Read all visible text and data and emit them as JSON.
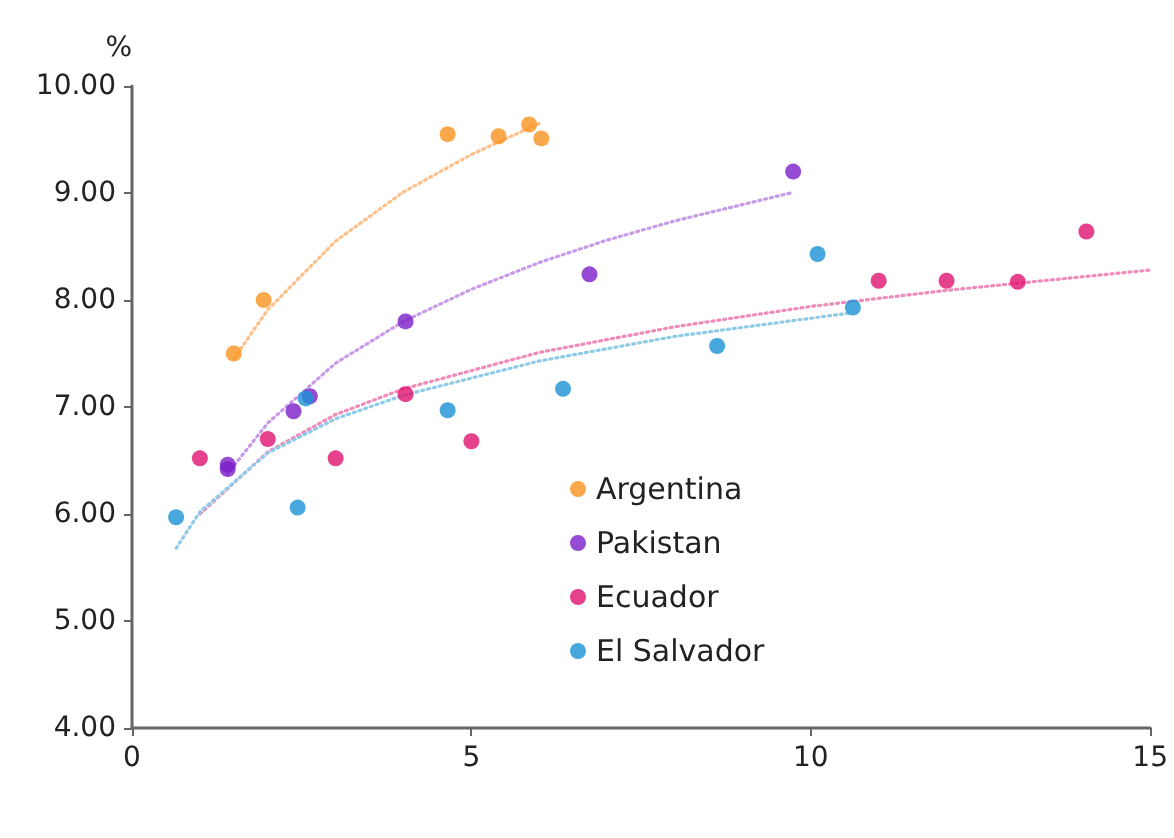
{
  "chart_data": {
    "type": "scatter",
    "ylabel": "%",
    "xlim": [
      0,
      15
    ],
    "xticks": [
      0,
      5,
      10,
      15
    ],
    "ylim": [
      4,
      10
    ],
    "yticks": [
      {
        "value": 4,
        "label": "4.00"
      },
      {
        "value": 5,
        "label": "5.00"
      },
      {
        "value": 6,
        "label": "6.00"
      },
      {
        "value": 7,
        "label": "7.00"
      },
      {
        "value": 8,
        "label": "8.00"
      },
      {
        "value": 9,
        "label": "9.00"
      },
      {
        "value": 10,
        "label": "10.00"
      }
    ],
    "grid": false,
    "legend": "bottom",
    "marker": "circle",
    "series": [
      {
        "name": "Argentina",
        "color": "#f7931e",
        "x": [
          1.5,
          1.94,
          4.65,
          5.4,
          5.85,
          6.03
        ],
        "values": [
          7.5,
          8.0,
          9.55,
          9.53,
          9.64,
          9.51
        ]
      },
      {
        "name": "Pakistan",
        "color": "#7b1fc8",
        "x": [
          1.41,
          1.41,
          2.38,
          2.62,
          4.03,
          6.74,
          9.74
        ],
        "values": [
          6.46,
          6.42,
          6.96,
          7.1,
          7.8,
          8.24,
          9.2
        ]
      },
      {
        "name": "Ecuador",
        "color": "#e0116f",
        "x": [
          1.0,
          2.0,
          3.0,
          4.03,
          5.0,
          11.0,
          12.0,
          13.05,
          14.06
        ],
        "values": [
          6.52,
          6.7,
          6.52,
          7.12,
          6.68,
          8.18,
          8.18,
          8.17,
          8.64
        ]
      },
      {
        "name": "El Salvador",
        "color": "#1a92d4",
        "x": [
          0.65,
          2.44,
          2.56,
          4.65,
          6.35,
          8.62,
          10.1,
          10.62
        ],
        "values": [
          5.97,
          6.06,
          7.08,
          6.97,
          7.17,
          7.57,
          8.43,
          7.93
        ]
      },
      {
        "type": "line",
        "marker": "none",
        "line_style": "dotted",
        "color": "#ffbf8a",
        "x": [
          1.5,
          2,
          3,
          4,
          5,
          6
        ],
        "values": [
          7.45,
          7.91,
          8.55,
          9.01,
          9.36,
          9.65
        ]
      },
      {
        "type": "line",
        "marker": "none",
        "line_style": "dotted",
        "color": "#c79bea",
        "x": [
          1.4,
          2,
          3,
          4,
          5,
          6,
          7,
          8,
          9.7
        ],
        "values": [
          6.37,
          6.85,
          7.41,
          7.8,
          8.1,
          8.35,
          8.56,
          8.74,
          9.0
        ]
      },
      {
        "type": "line",
        "marker": "none",
        "line_style": "dotted",
        "color": "#f08ab8",
        "x": [
          1,
          2,
          3,
          4,
          6,
          8,
          10,
          12,
          15
        ],
        "values": [
          6.0,
          6.58,
          6.93,
          7.17,
          7.51,
          7.75,
          7.94,
          8.09,
          8.28
        ]
      },
      {
        "type": "line",
        "marker": "none",
        "line_style": "dotted",
        "color": "#8fcbe8",
        "x": [
          0.65,
          1,
          2,
          3,
          4,
          6,
          8,
          10.6
        ],
        "values": [
          5.68,
          6.02,
          6.57,
          6.89,
          7.11,
          7.43,
          7.66,
          7.88
        ]
      }
    ]
  }
}
